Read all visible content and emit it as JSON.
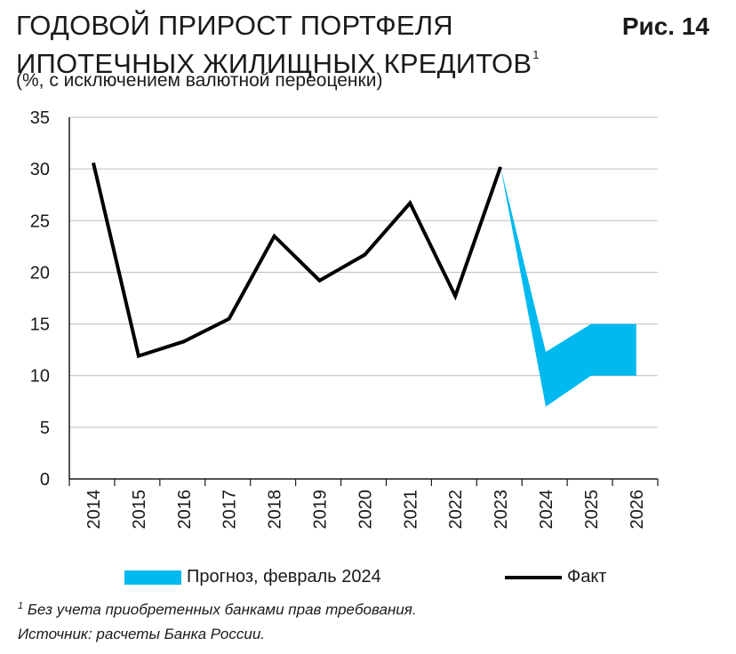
{
  "header": {
    "title_line1": "ГОДОВОЙ ПРИРОСТ ПОРТФЕЛЯ",
    "title_line2": "ИПОТЕЧНЫХ ЖИЛИЩНЫХ КРЕДИТОВ",
    "title_sup": "1",
    "figure_label": "Рис. 14",
    "subtitle": "(%, с исключением валютной переоценки)"
  },
  "chart_data": {
    "type": "line",
    "categories": [
      "2014",
      "2015",
      "2016",
      "2017",
      "2018",
      "2019",
      "2020",
      "2021",
      "2022",
      "2023",
      "2024",
      "2025",
      "2026"
    ],
    "yticks": [
      "0",
      "5",
      "10",
      "15",
      "20",
      "25",
      "30",
      "35"
    ],
    "ylim": [
      0,
      35
    ],
    "grid": true,
    "colors": {
      "forecast": "#00b9ee",
      "fact": "#000000",
      "grid": "#bdbdbd"
    },
    "series": [
      {
        "name": "Факт",
        "type": "line",
        "values": [
          30.6,
          11.9,
          13.3,
          15.5,
          23.5,
          19.2,
          21.7,
          26.7,
          17.7,
          30.2,
          null,
          null,
          null
        ]
      },
      {
        "name": "Прогноз, февраль 2024",
        "type": "band",
        "x": [
          "2023",
          "2024",
          "2025",
          "2026"
        ],
        "lower": [
          30.2,
          7.0,
          10.0,
          10.0
        ],
        "upper": [
          30.2,
          12.3,
          15.0,
          15.0
        ]
      }
    ],
    "legend": {
      "placement": "bottom",
      "forecast_label": "Прогноз, февраль 2024",
      "fact_label": "Факт"
    }
  },
  "footnotes": {
    "note_sup": "1",
    "note": " Без учета приобретенных банками прав требования.",
    "source": "Источник: расчеты Банка России."
  }
}
